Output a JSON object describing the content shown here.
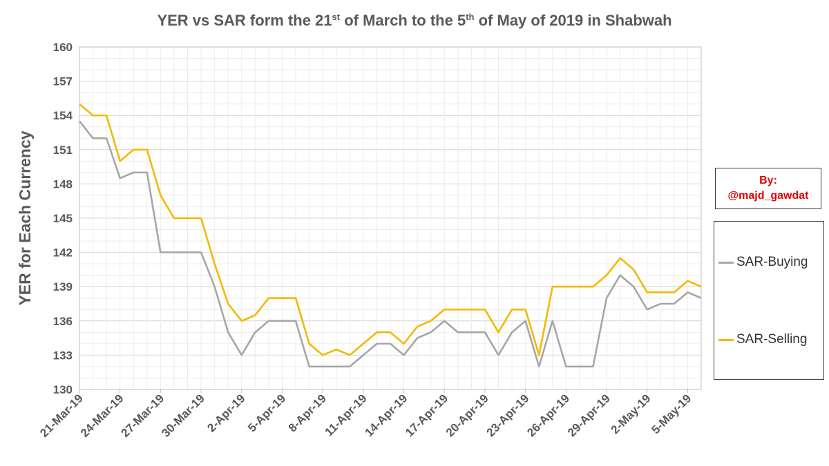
{
  "chart_data": {
    "type": "line",
    "title": {
      "parts": [
        {
          "text": "YER vs SAR form the 21",
          "sup": false
        },
        {
          "text": "st",
          "sup": true
        },
        {
          "text": " of March to the 5",
          "sup": false
        },
        {
          "text": "th",
          "sup": true
        },
        {
          "text": " of May of 2019 in Shabwah",
          "sup": false
        }
      ]
    },
    "ylabel": "YER for Each Currency",
    "ylim": [
      130,
      160
    ],
    "yticks": [
      130,
      133,
      136,
      139,
      142,
      145,
      148,
      151,
      154,
      157,
      160
    ],
    "grid": true,
    "legend_position": "right",
    "x": [
      "21-Mar-19",
      "22-Mar-19",
      "23-Mar-19",
      "24-Mar-19",
      "25-Mar-19",
      "26-Mar-19",
      "27-Mar-19",
      "28-Mar-19",
      "29-Mar-19",
      "30-Mar-19",
      "31-Mar-19",
      "1-Apr-19",
      "2-Apr-19",
      "3-Apr-19",
      "4-Apr-19",
      "5-Apr-19",
      "6-Apr-19",
      "7-Apr-19",
      "8-Apr-19",
      "9-Apr-19",
      "10-Apr-19",
      "11-Apr-19",
      "12-Apr-19",
      "13-Apr-19",
      "14-Apr-19",
      "15-Apr-19",
      "16-Apr-19",
      "17-Apr-19",
      "18-Apr-19",
      "19-Apr-19",
      "20-Apr-19",
      "21-Apr-19",
      "22-Apr-19",
      "23-Apr-19",
      "24-Apr-19",
      "25-Apr-19",
      "26-Apr-19",
      "27-Apr-19",
      "28-Apr-19",
      "29-Apr-19",
      "30-Apr-19",
      "1-May-19",
      "2-May-19",
      "3-May-19",
      "4-May-19",
      "5-May-19",
      "6-May-19"
    ],
    "x_tick_labels": [
      "21-Mar-19",
      "24-Mar-19",
      "27-Mar-19",
      "30-Mar-19",
      "2-Apr-19",
      "5-Apr-19",
      "8-Apr-19",
      "11-Apr-19",
      "14-Apr-19",
      "17-Apr-19",
      "20-Apr-19",
      "23-Apr-19",
      "26-Apr-19",
      "29-Apr-19",
      "2-May-19",
      "5-May-19"
    ],
    "series": [
      {
        "name": "SAR-Buying",
        "color": "#a6a6a6",
        "values": [
          153.5,
          152,
          152,
          148.5,
          149,
          149,
          142,
          142,
          142,
          142,
          139,
          135,
          133,
          135,
          136,
          136,
          136,
          132,
          132,
          132,
          132,
          133,
          134,
          134,
          133,
          134.5,
          135,
          136,
          135,
          135,
          135,
          133,
          135,
          136,
          132,
          136,
          132,
          132,
          132,
          138,
          140,
          139,
          137,
          137.5,
          137.5,
          138.5,
          138
        ]
      },
      {
        "name": "SAR-Selling",
        "color": "#f5b800",
        "values": [
          155,
          154,
          154,
          150,
          151,
          151,
          147,
          145,
          145,
          145,
          141,
          137.5,
          136,
          136.5,
          138,
          138,
          138,
          134,
          133,
          133.5,
          133,
          134,
          135,
          135,
          134,
          135.5,
          136,
          137,
          137,
          137,
          137,
          135,
          137,
          137,
          133,
          139,
          139,
          139,
          139,
          140,
          141.5,
          140.5,
          138.5,
          138.5,
          138.5,
          139.5,
          139
        ]
      }
    ]
  },
  "credit": {
    "line1": "By:",
    "line2": "@majd_gawdat"
  },
  "legend": {
    "items": [
      {
        "label": "SAR-Buying"
      },
      {
        "label": "SAR-Selling"
      }
    ]
  }
}
